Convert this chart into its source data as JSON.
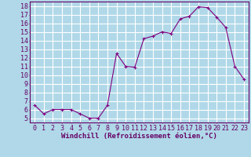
{
  "x": [
    0,
    1,
    2,
    3,
    4,
    5,
    6,
    7,
    8,
    9,
    10,
    11,
    12,
    13,
    14,
    15,
    16,
    17,
    18,
    19,
    20,
    21,
    22,
    23
  ],
  "y": [
    6.5,
    5.5,
    6.0,
    6.0,
    6.0,
    5.5,
    5.0,
    5.0,
    6.5,
    12.5,
    11.0,
    10.9,
    14.2,
    14.5,
    15.0,
    14.8,
    16.5,
    16.8,
    17.9,
    17.8,
    16.7,
    15.5,
    11.0,
    9.5
  ],
  "line_color": "#800080",
  "marker": "+",
  "marker_size": 3,
  "xlabel": "Windchill (Refroidissement éolien,°C)",
  "xlim": [
    -0.5,
    23.5
  ],
  "ylim": [
    4.5,
    18.5
  ],
  "yticks": [
    5,
    6,
    7,
    8,
    9,
    10,
    11,
    12,
    13,
    14,
    15,
    16,
    17,
    18
  ],
  "xticks": [
    0,
    1,
    2,
    3,
    4,
    5,
    6,
    7,
    8,
    9,
    10,
    11,
    12,
    13,
    14,
    15,
    16,
    17,
    18,
    19,
    20,
    21,
    22,
    23
  ],
  "bg_color": "#b0d8e8",
  "grid_color": "#ffffff",
  "tick_color": "#660066",
  "label_color": "#660066",
  "xlabel_fontsize": 6.5,
  "tick_fontsize": 6,
  "line_width": 0.8
}
